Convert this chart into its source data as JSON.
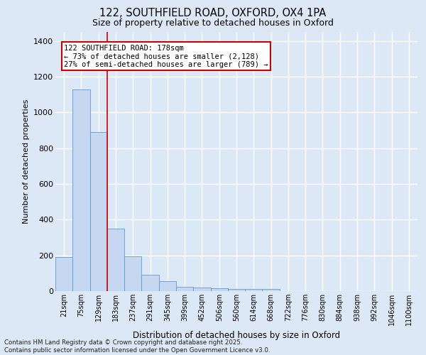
{
  "title_line1": "122, SOUTHFIELD ROAD, OXFORD, OX4 1PA",
  "title_line2": "Size of property relative to detached houses in Oxford",
  "xlabel": "Distribution of detached houses by size in Oxford",
  "ylabel": "Number of detached properties",
  "categories": [
    "21sqm",
    "75sqm",
    "129sqm",
    "183sqm",
    "237sqm",
    "291sqm",
    "345sqm",
    "399sqm",
    "452sqm",
    "506sqm",
    "560sqm",
    "614sqm",
    "668sqm",
    "722sqm",
    "776sqm",
    "830sqm",
    "884sqm",
    "938sqm",
    "992sqm",
    "1046sqm",
    "1100sqm"
  ],
  "values": [
    190,
    1130,
    890,
    350,
    195,
    90,
    55,
    22,
    20,
    15,
    10,
    10,
    10,
    0,
    0,
    0,
    0,
    0,
    0,
    0,
    0
  ],
  "bar_color": "#c5d8f0",
  "bar_edge_color": "#5b9bd5",
  "bar_width": 1.0,
  "vline_x": 2.5,
  "vline_color": "#cc0000",
  "annotation_text": "122 SOUTHFIELD ROAD: 178sqm\n← 73% of detached houses are smaller (2,128)\n27% of semi-detached houses are larger (789) →",
  "annotation_box_color": "#ffffff",
  "annotation_box_edge": "#cc0000",
  "ylim": [
    0,
    1450
  ],
  "yticks": [
    0,
    200,
    400,
    600,
    800,
    1000,
    1200,
    1400
  ],
  "background_color": "#dce8f5",
  "grid_color": "#ffffff",
  "footer_line1": "Contains HM Land Registry data © Crown copyright and database right 2025.",
  "footer_line2": "Contains public sector information licensed under the Open Government Licence v3.0."
}
